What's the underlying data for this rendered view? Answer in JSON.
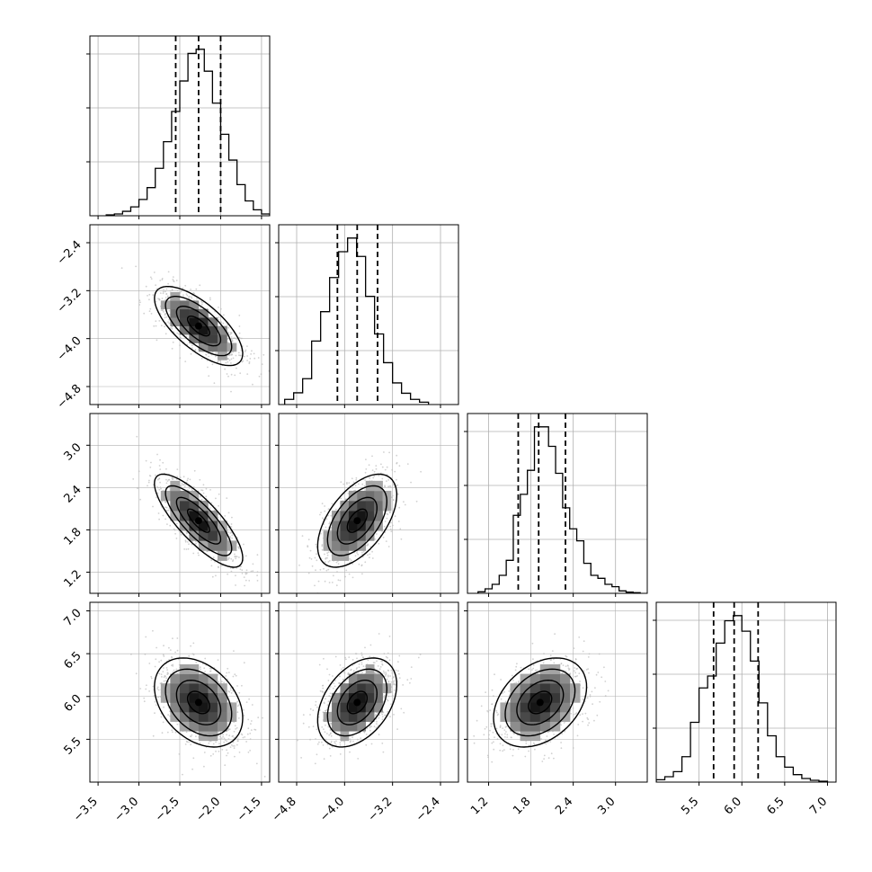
{
  "chart_data": {
    "type": "corner",
    "variables": [
      {
        "range": [
          -3.6,
          -1.4
        ],
        "ticks": [
          -3.5,
          -3.0,
          -2.5,
          -2.0,
          -1.5
        ],
        "tick_labels": [
          "−3.5",
          "−3.0",
          "−2.5",
          "−2.0",
          "−1.5"
        ],
        "quantiles": [
          -2.55,
          -2.27,
          -2.0
        ],
        "mean": -2.27,
        "sd": 0.27,
        "hist_bins": [
          -3.4,
          -3.3,
          -3.2,
          -3.1,
          -3.0,
          -2.9,
          -2.8,
          -2.7,
          -2.6,
          -2.5,
          -2.4,
          -2.3,
          -2.2,
          -2.1,
          -2.0,
          -1.9,
          -1.8,
          -1.7,
          -1.6,
          -1.5,
          -1.4
        ],
        "hist_counts": [
          3,
          6,
          15,
          30,
          55,
          95,
          160,
          250,
          352,
          455,
          548,
          562,
          488,
          380,
          275,
          188,
          105,
          50,
          20,
          6
        ]
      },
      {
        "range": [
          -5.1,
          -2.1
        ],
        "ticks": [
          -4.8,
          -4.0,
          -3.2,
          -2.4
        ],
        "tick_labels": [
          "−4.8",
          "−4.0",
          "−3.2",
          "−2.4"
        ],
        "quantiles": [
          -4.12,
          -3.79,
          -3.45
        ],
        "mean": -3.79,
        "sd": 0.33,
        "hist_bins": [
          -5.0,
          -4.85,
          -4.7,
          -4.55,
          -4.4,
          -4.25,
          -4.1,
          -3.95,
          -3.8,
          -3.65,
          -3.5,
          -3.35,
          -3.2,
          -3.05,
          -2.9,
          -2.75,
          -2.6
        ],
        "hist_counts": [
          22,
          50,
          110,
          270,
          395,
          540,
          650,
          708,
          630,
          460,
          300,
          178,
          92,
          48,
          22,
          10
        ]
      },
      {
        "range": [
          0.9,
          3.45
        ],
        "ticks": [
          1.2,
          1.8,
          2.4,
          3.0
        ],
        "tick_labels": [
          "1.2",
          "1.8",
          "2.4",
          "3.0"
        ],
        "quantiles": [
          1.62,
          1.91,
          2.29
        ],
        "mean": 1.93,
        "sd": 0.33,
        "hist_bins": [
          1.05,
          1.15,
          1.25,
          1.35,
          1.45,
          1.55,
          1.65,
          1.75,
          1.85,
          1.95,
          2.05,
          2.15,
          2.25,
          2.35,
          2.45,
          2.55,
          2.65,
          2.75,
          2.85,
          2.95,
          3.05,
          3.15,
          3.25,
          3.35
        ],
        "hist_counts": [
          5,
          15,
          30,
          60,
          110,
          260,
          330,
          410,
          555,
          555,
          490,
          400,
          285,
          215,
          175,
          100,
          60,
          50,
          30,
          22,
          8,
          4,
          2
        ]
      },
      {
        "range": [
          5.0,
          7.1
        ],
        "ticks": [
          5.5,
          6.0,
          6.5,
          7.0
        ],
        "tick_labels": [
          "5.5",
          "6.0",
          "6.5",
          "7.0"
        ],
        "quantiles": [
          5.67,
          5.91,
          6.19
        ],
        "mean": 5.93,
        "sd": 0.26,
        "hist_bins": [
          5.0,
          5.1,
          5.2,
          5.3,
          5.4,
          5.5,
          5.6,
          5.7,
          5.8,
          5.9,
          6.0,
          6.1,
          6.2,
          6.3,
          6.4,
          6.5,
          6.6,
          6.7,
          6.8,
          6.9,
          7.0
        ],
        "hist_counts": [
          8,
          18,
          35,
          85,
          200,
          315,
          355,
          465,
          540,
          557,
          505,
          405,
          265,
          155,
          85,
          50,
          25,
          12,
          6,
          3
        ]
      }
    ],
    "correlations": [
      [
        1,
        -0.7,
        -0.8,
        -0.35
      ],
      [
        -0.7,
        1,
        0.55,
        0.4
      ],
      [
        -0.8,
        0.55,
        1,
        0.35
      ],
      [
        -0.35,
        0.4,
        0.35,
        1
      ]
    ],
    "contour_levels_sigma": [
      0.5,
      1.0,
      1.5,
      2.0
    ],
    "grid": true,
    "line_style_quantiles": "dashed"
  },
  "colors": {
    "line": "#000000",
    "grid": "#b0b0b0",
    "points": "#bdbdbd",
    "background": "#ffffff"
  }
}
